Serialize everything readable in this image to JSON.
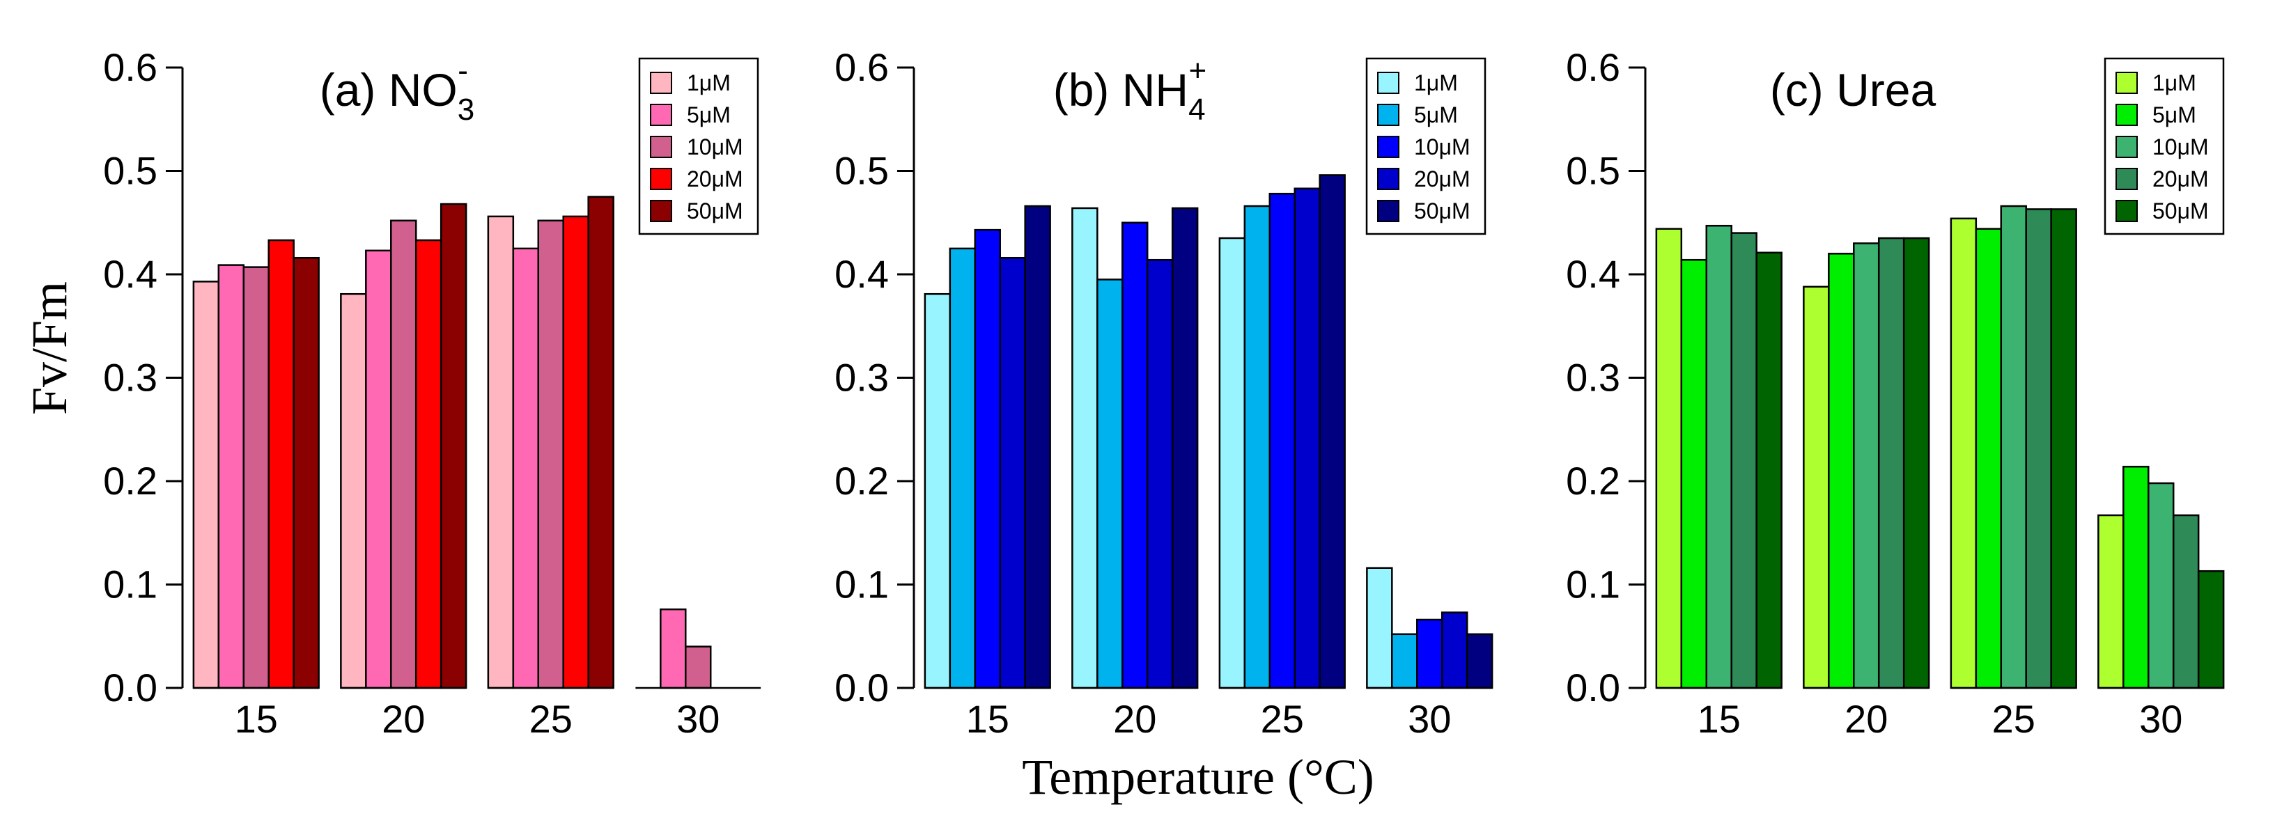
{
  "figure": {
    "ylabel": "Fv/Fm",
    "xlabel": "Temperature (°C)"
  },
  "chart_data": [
    {
      "type": "bar",
      "title": "(a) NO",
      "title_subscript": "3",
      "title_superscript": "-",
      "categories": [
        "15",
        "20",
        "25",
        "30"
      ],
      "ylim": [
        0,
        0.6
      ],
      "yticks": [
        "0.0",
        "0.1",
        "0.2",
        "0.3",
        "0.4",
        "0.5",
        "0.6"
      ],
      "legend_position": "top-right",
      "series": [
        {
          "name": "1μM",
          "color": "#ffb6c1",
          "values": [
            0.393,
            0.381,
            0.456,
            0.0
          ]
        },
        {
          "name": "5μM",
          "color": "#ff69b4",
          "values": [
            0.409,
            0.423,
            0.425,
            0.076
          ]
        },
        {
          "name": "10μM",
          "color": "#d1608f",
          "values": [
            0.407,
            0.452,
            0.452,
            0.04
          ]
        },
        {
          "name": "20μM",
          "color": "#ff0000",
          "values": [
            0.433,
            0.433,
            0.456,
            0.0
          ]
        },
        {
          "name": "50μM",
          "color": "#8b0000",
          "values": [
            0.416,
            0.468,
            0.475,
            0.0
          ]
        }
      ]
    },
    {
      "type": "bar",
      "title": "(b) NH",
      "title_subscript": "4",
      "title_superscript": "+",
      "categories": [
        "15",
        "20",
        "25",
        "30"
      ],
      "ylim": [
        0,
        0.6
      ],
      "yticks": [
        "0.0",
        "0.1",
        "0.2",
        "0.3",
        "0.4",
        "0.5",
        "0.6"
      ],
      "legend_position": "top-right",
      "series": [
        {
          "name": "1μM",
          "color": "#98f5ff",
          "values": [
            0.381,
            0.464,
            0.435,
            0.116
          ]
        },
        {
          "name": "5μM",
          "color": "#00b2ee",
          "values": [
            0.425,
            0.395,
            0.466,
            0.052
          ]
        },
        {
          "name": "10μM",
          "color": "#0000ff",
          "values": [
            0.443,
            0.45,
            0.478,
            0.066
          ]
        },
        {
          "name": "20μM",
          "color": "#0000cd",
          "values": [
            0.416,
            0.414,
            0.483,
            0.073
          ]
        },
        {
          "name": "50μM",
          "color": "#000080",
          "values": [
            0.466,
            0.464,
            0.496,
            0.052
          ]
        }
      ]
    },
    {
      "type": "bar",
      "title": "(c) Urea",
      "title_subscript": "",
      "title_superscript": "",
      "categories": [
        "15",
        "20",
        "25",
        "30"
      ],
      "ylim": [
        0,
        0.6
      ],
      "yticks": [
        "0.0",
        "0.1",
        "0.2",
        "0.3",
        "0.4",
        "0.5",
        "0.6"
      ],
      "legend_position": "top-right",
      "series": [
        {
          "name": "1μM",
          "color": "#adff2f",
          "values": [
            0.444,
            0.388,
            0.454,
            0.167
          ]
        },
        {
          "name": "5μM",
          "color": "#00ee00",
          "values": [
            0.414,
            0.42,
            0.444,
            0.214
          ]
        },
        {
          "name": "10μM",
          "color": "#3cb371",
          "values": [
            0.447,
            0.43,
            0.466,
            0.198
          ]
        },
        {
          "name": "20μM",
          "color": "#2e8b57",
          "values": [
            0.44,
            0.435,
            0.463,
            0.167
          ]
        },
        {
          "name": "50μM",
          "color": "#006400",
          "values": [
            0.421,
            0.435,
            0.463,
            0.113
          ]
        }
      ]
    }
  ]
}
